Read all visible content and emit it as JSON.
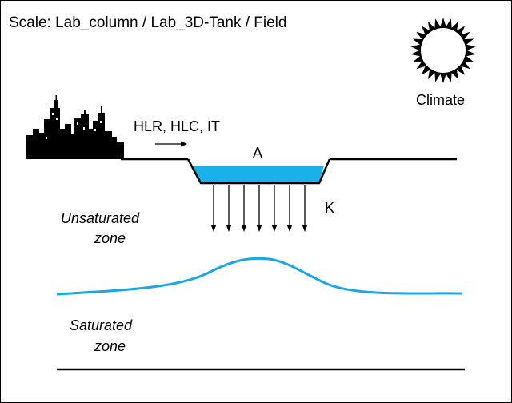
{
  "title": "Scale: Lab_column / Lab_3D-Tank / Field",
  "climate_label": "Climate",
  "loading_label": "HLR, HLC, IT",
  "area_label": "A",
  "conductivity_label": "K",
  "unsaturated_zone": {
    "line1": "Unsaturated",
    "line2": "zone"
  },
  "saturated_zone": {
    "line1": "Saturated",
    "line2": "zone"
  },
  "icons": {
    "sun": "sun-icon",
    "city": "city-skyline-icon"
  },
  "colors": {
    "water": "#1ab0ea",
    "water_table": "#1aa6e6",
    "line": "#000000"
  }
}
